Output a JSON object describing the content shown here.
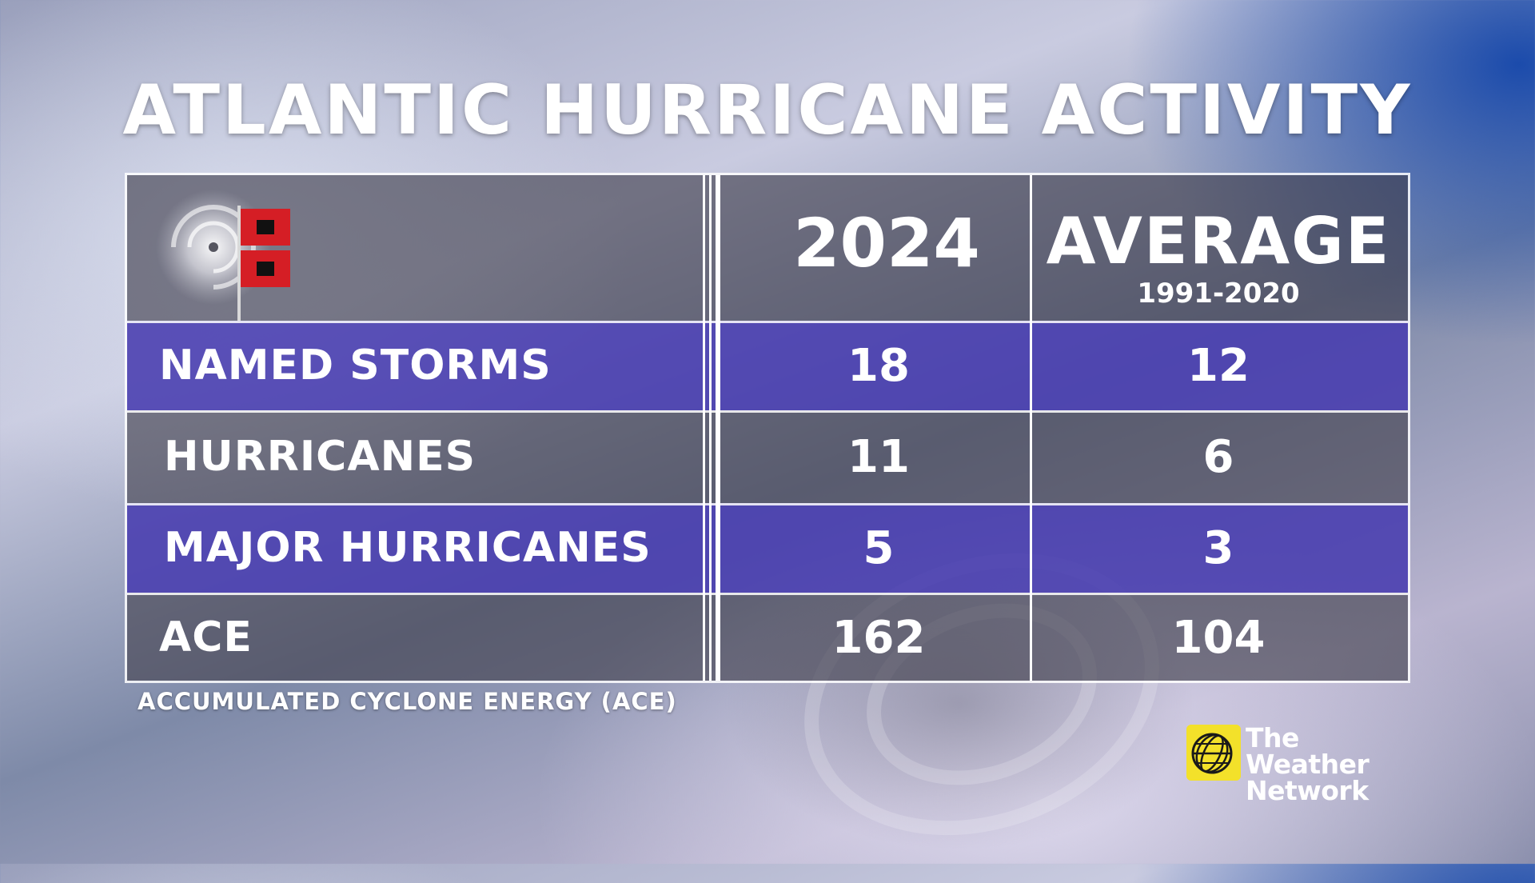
{
  "title": "ATLANTIC HURRICANE ACTIVITY",
  "header": {
    "col_2024": "2024",
    "col_average": "AVERAGE",
    "col_average_sub": "1991-2020"
  },
  "rows": [
    {
      "label": "NAMED STORMS",
      "value_2024": "18",
      "value_average": "12",
      "style": "purple"
    },
    {
      "label": "HURRICANES",
      "value_2024": "11",
      "value_average": "6",
      "style": "gray"
    },
    {
      "label": "MAJOR HURRICANES",
      "value_2024": "5",
      "value_average": "3",
      "style": "purple"
    },
    {
      "label": "ACE",
      "value_2024": "162",
      "value_average": "104",
      "style": "gray"
    }
  ],
  "footnote": "ACCUMULATED CYCLONE ENERGY (ACE)",
  "logo": {
    "line1": "The Weather",
    "line2": "Network",
    "icon": "weather-network-globe-icon"
  },
  "emblem_icon": "hurricane-warning-flags-icon",
  "colors": {
    "purple_row": "#483cb0",
    "gray_row": "#46444f",
    "logo_yellow": "#f3e12a"
  },
  "chart_data": {
    "type": "table",
    "title": "ATLANTIC HURRICANE ACTIVITY",
    "columns": [
      "2024",
      "AVERAGE 1991-2020"
    ],
    "row_labels": [
      "NAMED STORMS",
      "HURRICANES",
      "MAJOR HURRICANES",
      "ACE"
    ],
    "series": [
      {
        "name": "2024",
        "values": [
          18,
          11,
          5,
          162
        ]
      },
      {
        "name": "AVERAGE 1991-2020",
        "values": [
          12,
          6,
          3,
          104
        ]
      }
    ],
    "annotations": [
      "ACCUMULATED CYCLONE ENERGY (ACE)"
    ]
  }
}
